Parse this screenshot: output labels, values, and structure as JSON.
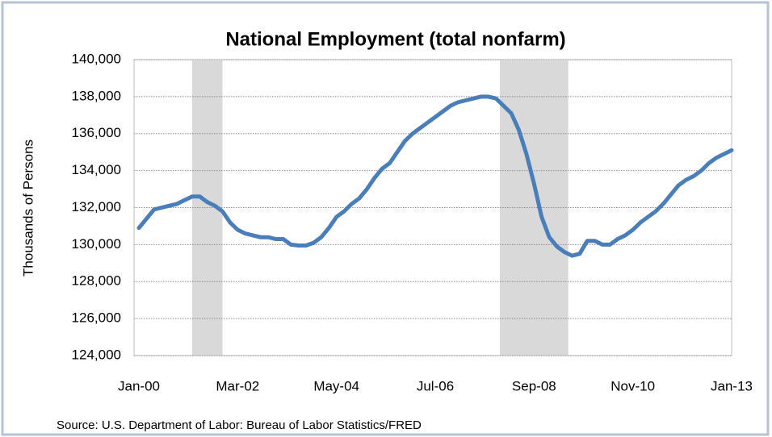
{
  "chart_data": {
    "type": "line",
    "title": "National Employment (total nonfarm)",
    "y_label": "Thousands of Persons",
    "source": "Source: U.S. Department of Labor: Bureau of Labor Statistics/FRED",
    "categories": [
      "Jan-00",
      null,
      null,
      null,
      null,
      null,
      null,
      null,
      null,
      null,
      null,
      null,
      null,
      "Mar-02",
      null,
      null,
      null,
      null,
      null,
      null,
      null,
      null,
      null,
      null,
      null,
      null,
      "May-04",
      null,
      null,
      null,
      null,
      null,
      null,
      null,
      null,
      null,
      null,
      null,
      null,
      "Jul-06",
      null,
      null,
      null,
      null,
      null,
      null,
      null,
      null,
      null,
      null,
      null,
      null,
      "Sep-08",
      null,
      null,
      null,
      null,
      null,
      null,
      null,
      null,
      null,
      null,
      null,
      null,
      "Nov-10",
      null,
      null,
      null,
      null,
      null,
      null,
      null,
      null,
      null,
      null,
      null,
      null,
      "Jan-13"
    ],
    "series": [
      {
        "name": "Total nonfarm",
        "color": "#4a7ebb",
        "values": [
          130900,
          131400,
          131900,
          132000,
          132100,
          132200,
          132400,
          132600,
          132600,
          132300,
          132100,
          131800,
          131200,
          130800,
          130600,
          130500,
          130400,
          130400,
          130300,
          130300,
          130000,
          129950,
          129950,
          130100,
          130400,
          130900,
          131500,
          131800,
          132200,
          132500,
          133000,
          133600,
          134100,
          134400,
          135000,
          135600,
          136000,
          136300,
          136600,
          136900,
          137200,
          137500,
          137700,
          137800,
          137900,
          138000,
          138000,
          137900,
          137500,
          137100,
          136200,
          134900,
          133300,
          131500,
          130400,
          129900,
          129600,
          129400,
          129500,
          130200,
          130200,
          130000,
          130000,
          130300,
          130500,
          130800,
          131200,
          131500,
          131800,
          132200,
          132700,
          133200,
          133500,
          133700,
          134000,
          134400,
          134700,
          134900,
          135100
        ]
      }
    ],
    "shaded_ranges": [
      [
        7,
        11
      ],
      [
        47.5,
        56.5
      ]
    ],
    "shade_color": "#d9d9d9",
    "ylim": [
      124000,
      140000
    ],
    "yticks": [
      {
        "value": 124000,
        "label": "124,000"
      },
      {
        "value": 126000,
        "label": "126,000"
      },
      {
        "value": 128000,
        "label": "128,000"
      },
      {
        "value": 130000,
        "label": "130,000"
      },
      {
        "value": 132000,
        "label": "132,000"
      },
      {
        "value": 134000,
        "label": "134,000"
      },
      {
        "value": 136000,
        "label": "136,000"
      },
      {
        "value": 138000,
        "label": "138,000"
      },
      {
        "value": 140000,
        "label": "140,000"
      }
    ],
    "grid": true
  }
}
